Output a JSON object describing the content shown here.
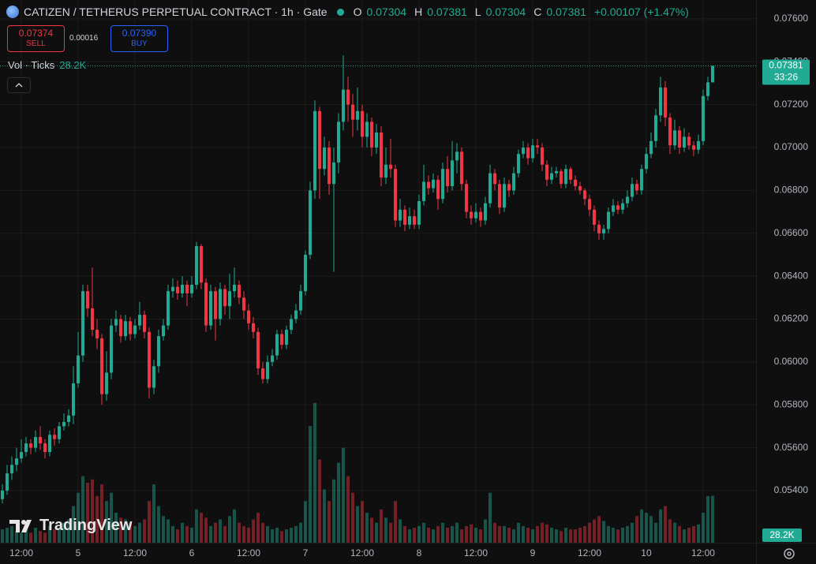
{
  "header": {
    "symbol_title": "CATIZEN / TETHERUS PERPETUAL CONTRACT · 1h · Gate",
    "ohlc_labels": [
      "O",
      "H",
      "L",
      "C"
    ],
    "change": "+0.00107 (+1.47%)"
  },
  "order_panel": {
    "sell_price": "0.07374",
    "sell_label": "SELL",
    "spread": "0.00016",
    "buy_price": "0.07390",
    "buy_label": "BUY"
  },
  "volume_legend": "Vol · Ticks",
  "countdown": "33:26",
  "watermark": "TradingView",
  "chart_data": {
    "type": "candlestick",
    "up_color": "#22ab94",
    "down_color": "#f23645",
    "grid": true,
    "xlim": [
      -4.5,
      155.17
    ],
    "xticks": [
      {
        "value": 0,
        "label": "12:00"
      },
      {
        "value": 12,
        "label": "5"
      },
      {
        "value": 24,
        "label": "12:00"
      },
      {
        "value": 36,
        "label": "6"
      },
      {
        "value": 48,
        "label": "12:00"
      },
      {
        "value": 60,
        "label": "7"
      },
      {
        "value": 72,
        "label": "12:00"
      },
      {
        "value": 84,
        "label": "8"
      },
      {
        "value": 96,
        "label": "12:00"
      },
      {
        "value": 108,
        "label": "9"
      },
      {
        "value": 120,
        "label": "12:00"
      },
      {
        "value": 132,
        "label": "10"
      },
      {
        "value": 144,
        "label": "12:00"
      }
    ],
    "ylim": [
      0.05157,
      0.07688
    ],
    "yticks": [
      {
        "value": 0.054,
        "label": "0.05400"
      },
      {
        "value": 0.056,
        "label": "0.05600"
      },
      {
        "value": 0.058,
        "label": "0.05800"
      },
      {
        "value": 0.06,
        "label": "0.06000"
      },
      {
        "value": 0.062,
        "label": "0.06200"
      },
      {
        "value": 0.064,
        "label": "0.06400"
      },
      {
        "value": 0.066,
        "label": "0.06600"
      },
      {
        "value": 0.068,
        "label": "0.06800"
      },
      {
        "value": 0.07,
        "label": "0.07000"
      },
      {
        "value": 0.072,
        "label": "0.07200"
      },
      {
        "value": 0.074,
        "label": "0.07400"
      },
      {
        "value": 0.076,
        "label": "0.07600"
      }
    ],
    "x": [
      -4,
      -3,
      -2,
      -1,
      0,
      1,
      2,
      3,
      4,
      5,
      6,
      7,
      8,
      9,
      10,
      11,
      12,
      13,
      14,
      15,
      16,
      17,
      18,
      19,
      20,
      21,
      22,
      23,
      24,
      25,
      26,
      27,
      28,
      29,
      30,
      31,
      32,
      33,
      34,
      35,
      36,
      37,
      38,
      39,
      40,
      41,
      42,
      43,
      44,
      45,
      46,
      47,
      48,
      49,
      50,
      51,
      52,
      53,
      54,
      55,
      56,
      57,
      58,
      59,
      60,
      61,
      62,
      63,
      64,
      65,
      66,
      67,
      68,
      69,
      70,
      71,
      72,
      73,
      74,
      75,
      76,
      77,
      78,
      79,
      80,
      81,
      82,
      83,
      84,
      85,
      86,
      87,
      88,
      89,
      90,
      91,
      92,
      93,
      94,
      95,
      96,
      97,
      98,
      99,
      100,
      101,
      102,
      103,
      104,
      105,
      106,
      107,
      108,
      109,
      110,
      111,
      112,
      113,
      114,
      115,
      116,
      117,
      118,
      119,
      120,
      121,
      122,
      123,
      124,
      125,
      126,
      127,
      128,
      129,
      130,
      131,
      132,
      133,
      134,
      135,
      136,
      137,
      138,
      139,
      140,
      141,
      142,
      143,
      144,
      145,
      146
    ],
    "open": [
      0.0536,
      0.054,
      0.0548,
      0.0552,
      0.0555,
      0.0558,
      0.0562,
      0.056,
      0.0565,
      0.0562,
      0.0558,
      0.0566,
      0.0564,
      0.057,
      0.0572,
      0.0575,
      0.059,
      0.0603,
      0.0633,
      0.0625,
      0.0615,
      0.0611,
      0.0585,
      0.0595,
      0.0617,
      0.062,
      0.0612,
      0.0619,
      0.0613,
      0.0617,
      0.0622,
      0.0614,
      0.0588,
      0.0598,
      0.0612,
      0.0617,
      0.0633,
      0.0635,
      0.0632,
      0.0636,
      0.0632,
      0.0636,
      0.0654,
      0.0637,
      0.0617,
      0.0633,
      0.062,
      0.0634,
      0.0626,
      0.0633,
      0.0636,
      0.063,
      0.0624,
      0.0618,
      0.0614,
      0.0597,
      0.0592,
      0.06,
      0.0603,
      0.0613,
      0.0608,
      0.0615,
      0.062,
      0.0624,
      0.0633,
      0.065,
      0.068,
      0.0717,
      0.069,
      0.07,
      0.0683,
      0.0693,
      0.0712,
      0.0727,
      0.072,
      0.0713,
      0.0717,
      0.0705,
      0.0712,
      0.07,
      0.0707,
      0.0686,
      0.0692,
      0.069,
      0.0666,
      0.0671,
      0.0664,
      0.0668,
      0.0664,
      0.0675,
      0.0684,
      0.0681,
      0.0685,
      0.0676,
      0.069,
      0.0682,
      0.0694,
      0.0698,
      0.0683,
      0.067,
      0.0667,
      0.067,
      0.0666,
      0.0674,
      0.0688,
      0.0683,
      0.0672,
      0.0683,
      0.068,
      0.0688,
      0.0697,
      0.07,
      0.0695,
      0.0701,
      0.07,
      0.0692,
      0.0685,
      0.0688,
      0.0689,
      0.0683,
      0.069,
      0.0685,
      0.0682,
      0.068,
      0.0676,
      0.0671,
      0.0664,
      0.066,
      0.0662,
      0.067,
      0.0673,
      0.0671,
      0.0674,
      0.0677,
      0.0683,
      0.068,
      0.069,
      0.0697,
      0.0703,
      0.0715,
      0.0728,
      0.0714,
      0.0701,
      0.0708,
      0.07,
      0.0705,
      0.0701,
      0.0699,
      0.0703,
      0.0724,
      0.07304
    ],
    "high": [
      0.0543,
      0.0552,
      0.0556,
      0.056,
      0.0564,
      0.0565,
      0.0564,
      0.0568,
      0.057,
      0.0564,
      0.0568,
      0.0569,
      0.0572,
      0.0576,
      0.0578,
      0.0598,
      0.0614,
      0.0636,
      0.0636,
      0.0644,
      0.062,
      0.0613,
      0.0605,
      0.062,
      0.0624,
      0.0622,
      0.0622,
      0.0621,
      0.062,
      0.0628,
      0.0624,
      0.0616,
      0.0601,
      0.0615,
      0.062,
      0.0636,
      0.0639,
      0.0638,
      0.064,
      0.0638,
      0.064,
      0.0656,
      0.0655,
      0.0639,
      0.0636,
      0.0635,
      0.0637,
      0.0636,
      0.0641,
      0.0644,
      0.0638,
      0.0633,
      0.0627,
      0.0621,
      0.0616,
      0.06,
      0.0603,
      0.0606,
      0.0615,
      0.0615,
      0.0617,
      0.0622,
      0.0627,
      0.0636,
      0.0652,
      0.0684,
      0.0722,
      0.0719,
      0.0705,
      0.0703,
      0.07,
      0.0716,
      0.0743,
      0.0733,
      0.0725,
      0.0728,
      0.072,
      0.0716,
      0.0714,
      0.0711,
      0.071,
      0.07,
      0.0704,
      0.0692,
      0.0676,
      0.0673,
      0.0672,
      0.0671,
      0.0678,
      0.0692,
      0.0687,
      0.0688,
      0.0687,
      0.0693,
      0.0696,
      0.0703,
      0.0702,
      0.07,
      0.0685,
      0.0673,
      0.0674,
      0.0672,
      0.0677,
      0.0692,
      0.069,
      0.0685,
      0.0686,
      0.0685,
      0.0691,
      0.0699,
      0.0703,
      0.0702,
      0.0704,
      0.0704,
      0.0702,
      0.0694,
      0.0691,
      0.0691,
      0.069,
      0.0692,
      0.0691,
      0.0687,
      0.0684,
      0.0681,
      0.0678,
      0.0673,
      0.0666,
      0.0664,
      0.0672,
      0.0676,
      0.0675,
      0.0676,
      0.068,
      0.0686,
      0.0685,
      0.0692,
      0.07,
      0.0707,
      0.0718,
      0.0733,
      0.0731,
      0.0716,
      0.0713,
      0.071,
      0.0709,
      0.0707,
      0.0703,
      0.0706,
      0.0727,
      0.0733,
      0.07381
    ],
    "low": [
      0.0534,
      0.0538,
      0.0545,
      0.0549,
      0.0553,
      0.0556,
      0.0557,
      0.0558,
      0.0559,
      0.0555,
      0.0556,
      0.0561,
      0.0562,
      0.0568,
      0.057,
      0.0571,
      0.0588,
      0.06,
      0.0621,
      0.0612,
      0.0606,
      0.058,
      0.0582,
      0.0592,
      0.0614,
      0.0609,
      0.061,
      0.061,
      0.0611,
      0.0615,
      0.0611,
      0.0583,
      0.0585,
      0.0595,
      0.061,
      0.0615,
      0.063,
      0.0629,
      0.063,
      0.0626,
      0.063,
      0.0634,
      0.0634,
      0.0614,
      0.0615,
      0.061,
      0.0617,
      0.0622,
      0.062,
      0.063,
      0.0627,
      0.062,
      0.0615,
      0.0611,
      0.0594,
      0.059,
      0.059,
      0.0598,
      0.0601,
      0.0606,
      0.0606,
      0.0613,
      0.0618,
      0.0622,
      0.0631,
      0.0648,
      0.0676,
      0.0676,
      0.0687,
      0.0678,
      0.0642,
      0.0688,
      0.0708,
      0.0712,
      0.0705,
      0.0708,
      0.07,
      0.07,
      0.0696,
      0.0697,
      0.0682,
      0.0683,
      0.0686,
      0.0663,
      0.0663,
      0.0661,
      0.0662,
      0.0662,
      0.0662,
      0.0673,
      0.0678,
      0.0679,
      0.0671,
      0.0674,
      0.0679,
      0.068,
      0.0688,
      0.068,
      0.0667,
      0.0664,
      0.0665,
      0.0663,
      0.0664,
      0.0672,
      0.068,
      0.0669,
      0.067,
      0.0677,
      0.0678,
      0.0686,
      0.0695,
      0.0692,
      0.0693,
      0.0697,
      0.0689,
      0.0682,
      0.0683,
      0.0686,
      0.0681,
      0.0681,
      0.0683,
      0.068,
      0.0678,
      0.0673,
      0.0668,
      0.0661,
      0.0657,
      0.0657,
      0.066,
      0.0668,
      0.0669,
      0.0669,
      0.0672,
      0.0675,
      0.0678,
      0.0678,
      0.0688,
      0.0695,
      0.07,
      0.0712,
      0.071,
      0.0697,
      0.0699,
      0.0697,
      0.0698,
      0.0699,
      0.0696,
      0.0697,
      0.0701,
      0.0722,
      0.07304
    ],
    "close": [
      0.054,
      0.0548,
      0.0552,
      0.0555,
      0.0558,
      0.0562,
      0.056,
      0.0565,
      0.0562,
      0.0558,
      0.0566,
      0.0564,
      0.057,
      0.0572,
      0.0575,
      0.059,
      0.0603,
      0.0633,
      0.0625,
      0.0615,
      0.0611,
      0.0585,
      0.0595,
      0.0617,
      0.062,
      0.0612,
      0.0619,
      0.0613,
      0.0617,
      0.0622,
      0.0614,
      0.0588,
      0.0598,
      0.0612,
      0.0617,
      0.0633,
      0.0635,
      0.0632,
      0.0636,
      0.0632,
      0.0636,
      0.0654,
      0.0637,
      0.0617,
      0.0633,
      0.062,
      0.0634,
      0.0626,
      0.0633,
      0.0636,
      0.063,
      0.0624,
      0.0618,
      0.0614,
      0.0597,
      0.0592,
      0.06,
      0.0603,
      0.0613,
      0.0608,
      0.0615,
      0.062,
      0.0624,
      0.0633,
      0.065,
      0.068,
      0.0717,
      0.069,
      0.07,
      0.0683,
      0.0693,
      0.0712,
      0.0727,
      0.072,
      0.0713,
      0.0717,
      0.0705,
      0.0712,
      0.07,
      0.0707,
      0.0686,
      0.0692,
      0.069,
      0.0666,
      0.0671,
      0.0664,
      0.0668,
      0.0664,
      0.0675,
      0.0684,
      0.0681,
      0.0685,
      0.0676,
      0.069,
      0.0682,
      0.0694,
      0.0698,
      0.0683,
      0.067,
      0.0667,
      0.067,
      0.0666,
      0.0674,
      0.0688,
      0.0683,
      0.0672,
      0.0683,
      0.068,
      0.0688,
      0.0697,
      0.07,
      0.0695,
      0.0701,
      0.07,
      0.0692,
      0.0685,
      0.0688,
      0.0689,
      0.0683,
      0.069,
      0.0685,
      0.0682,
      0.068,
      0.0676,
      0.0671,
      0.0664,
      0.066,
      0.0662,
      0.067,
      0.0673,
      0.0671,
      0.0674,
      0.0677,
      0.0683,
      0.068,
      0.069,
      0.0697,
      0.0703,
      0.0715,
      0.0728,
      0.0714,
      0.0701,
      0.0708,
      0.07,
      0.0705,
      0.0701,
      0.0699,
      0.0703,
      0.0724,
      0.07304,
      0.07381
    ],
    "volume": {
      "ylim": [
        0,
        90000
      ],
      "label": "28.2K",
      "values": [
        8000,
        9000,
        10000,
        7000,
        6000,
        8000,
        6000,
        9000,
        7000,
        6000,
        10000,
        8000,
        9000,
        12000,
        14000,
        22000,
        30000,
        40000,
        36000,
        38000,
        28000,
        35000,
        25000,
        30000,
        18000,
        15000,
        14000,
        12000,
        10000,
        12000,
        14000,
        25000,
        35000,
        22000,
        16000,
        14000,
        10000,
        8000,
        12000,
        10000,
        9000,
        20000,
        18000,
        15000,
        10000,
        12000,
        14000,
        10000,
        16000,
        20000,
        12000,
        10000,
        9000,
        14000,
        18000,
        12000,
        10000,
        8000,
        9000,
        7000,
        8000,
        9000,
        10000,
        12000,
        25000,
        70000,
        84000,
        50000,
        32000,
        25000,
        38000,
        48000,
        57000,
        40000,
        30000,
        22000,
        25000,
        18000,
        15000,
        12000,
        20000,
        15000,
        12000,
        25000,
        14000,
        10000,
        8000,
        9000,
        10000,
        12000,
        9000,
        8000,
        10000,
        12000,
        9000,
        10000,
        12000,
        8000,
        10000,
        11000,
        9000,
        8000,
        14000,
        30000,
        12000,
        10000,
        10000,
        9000,
        8000,
        12000,
        10000,
        9000,
        8000,
        10000,
        12000,
        11000,
        9000,
        8000,
        7000,
        9000,
        8000,
        8000,
        9000,
        10000,
        12000,
        14000,
        16000,
        13000,
        10000,
        9000,
        8000,
        9000,
        10000,
        12000,
        16000,
        20000,
        18000,
        16000,
        12000,
        20000,
        22000,
        14000,
        12000,
        10000,
        8000,
        9000,
        10000,
        11000,
        18000,
        28000,
        28200
      ]
    }
  }
}
